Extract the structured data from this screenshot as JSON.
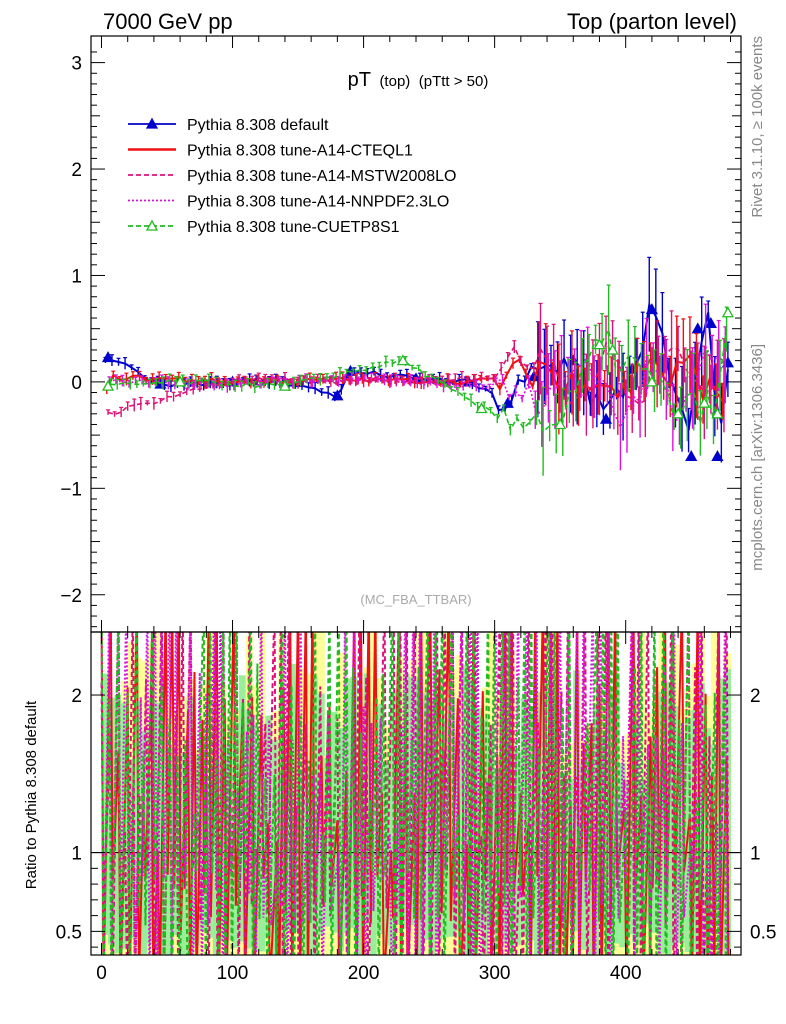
{
  "header": {
    "left_title": "7000 GeV pp",
    "right_title": "Top (parton level)"
  },
  "plot_title": {
    "main": "pT",
    "sub1": "(top)",
    "sub2": "(pTtt > 50)"
  },
  "side_labels": {
    "rivet": "Rivet 3.1.10, ≥ 100k events",
    "mcplots": "mcplots.cern.ch [arXiv:1306.3436]"
  },
  "watermark": "(MC_FBA_TTBAR)",
  "ratio_ylabel": "Ratio to Pythia 8.308 default",
  "chart_data": [
    {
      "type": "line",
      "panel": "main",
      "x_ticks": [
        "0",
        "100",
        "200",
        "300",
        "400"
      ],
      "y_ticks": [
        "3",
        "2",
        "1",
        "0",
        "−1",
        "−2"
      ],
      "xlim": [
        -8,
        488
      ],
      "ylim": [
        -2.35,
        3.25
      ],
      "legend_position": "top-left",
      "series": [
        {
          "name": "Pythia 8.308 default",
          "color": "#0000cc",
          "style": "solid",
          "marker": "filled-triangle",
          "points": [
            [
              5,
              0.23
            ],
            [
              45,
              -0.02
            ],
            [
              100,
              0.0
            ],
            [
              140,
              0.0
            ],
            [
              180,
              -0.13
            ],
            [
              190,
              0.1
            ],
            [
              240,
              0.03
            ],
            [
              280,
              0.0
            ],
            [
              310,
              -0.2
            ],
            [
              330,
              0.05
            ],
            [
              360,
              0.2
            ],
            [
              385,
              -0.35
            ],
            [
              405,
              0.12
            ],
            [
              420,
              0.68
            ],
            [
              450,
              -0.7
            ],
            [
              455,
              0.5
            ],
            [
              465,
              0.55
            ],
            [
              470,
              -0.7
            ],
            [
              478,
              0.18
            ]
          ]
        },
        {
          "name": "Pythia 8.308 tune-A14-CTEQL1",
          "color": "#ee1111",
          "style": "solid",
          "marker": "none",
          "points": [
            [
              5,
              0.05
            ],
            [
              100,
              0.0
            ],
            [
              200,
              0.02
            ],
            [
              280,
              0.0
            ],
            [
              320,
              0.05
            ],
            [
              340,
              0.2
            ],
            [
              350,
              -0.1
            ],
            [
              370,
              0.1
            ],
            [
              400,
              -0.1
            ],
            [
              420,
              0.3
            ],
            [
              430,
              0.0
            ],
            [
              450,
              0.15
            ],
            [
              470,
              -0.2
            ],
            [
              478,
              -0.1
            ]
          ]
        },
        {
          "name": "Pythia 8.308 tune-A14-MSTW2008LO",
          "color": "#dd1177",
          "style": "dashed",
          "marker": "none",
          "points": [
            [
              5,
              -0.3
            ],
            [
              100,
              0.02
            ],
            [
              200,
              0.0
            ],
            [
              300,
              0.05
            ],
            [
              340,
              0.35
            ],
            [
              360,
              -0.2
            ],
            [
              390,
              0.3
            ],
            [
              410,
              -0.3
            ],
            [
              430,
              0.4
            ],
            [
              450,
              -0.1
            ],
            [
              470,
              0.1
            ],
            [
              478,
              0.0
            ]
          ]
        },
        {
          "name": "Pythia 8.308 tune-A14-NNPDF2.3LO",
          "color": "#dd11dd",
          "style": "dotted",
          "marker": "none",
          "points": [
            [
              5,
              0.0
            ],
            [
              100,
              -0.02
            ],
            [
              200,
              0.03
            ],
            [
              300,
              -0.05
            ],
            [
              340,
              -0.2
            ],
            [
              370,
              0.25
            ],
            [
              400,
              -0.4
            ],
            [
              420,
              0.2
            ],
            [
              440,
              -0.3
            ],
            [
              460,
              0.4
            ],
            [
              478,
              0.1
            ]
          ]
        },
        {
          "name": "Pythia 8.308 tune-CUETP8S1",
          "color": "#22bb22",
          "style": "dashed",
          "marker": "open-triangle",
          "points": [
            [
              5,
              -0.04
            ],
            [
              60,
              0.0
            ],
            [
              140,
              -0.04
            ],
            [
              230,
              0.2
            ],
            [
              290,
              -0.25
            ],
            [
              350,
              -0.4
            ],
            [
              380,
              0.35
            ],
            [
              390,
              0.3
            ],
            [
              420,
              0.0
            ],
            [
              440,
              -0.3
            ],
            [
              460,
              -0.2
            ],
            [
              470,
              -0.3
            ],
            [
              478,
              0.65
            ]
          ]
        }
      ]
    },
    {
      "type": "line",
      "panel": "ratio",
      "x_ticks": [
        "0",
        "100",
        "200",
        "300",
        "400"
      ],
      "y_ticks": [
        "2",
        "1",
        "0.5"
      ],
      "xlim": [
        -8,
        488
      ],
      "ylim": [
        0.35,
        2.4
      ],
      "reference_line": 1,
      "ylabel": "Ratio to Pythia 8.308 default"
    }
  ]
}
